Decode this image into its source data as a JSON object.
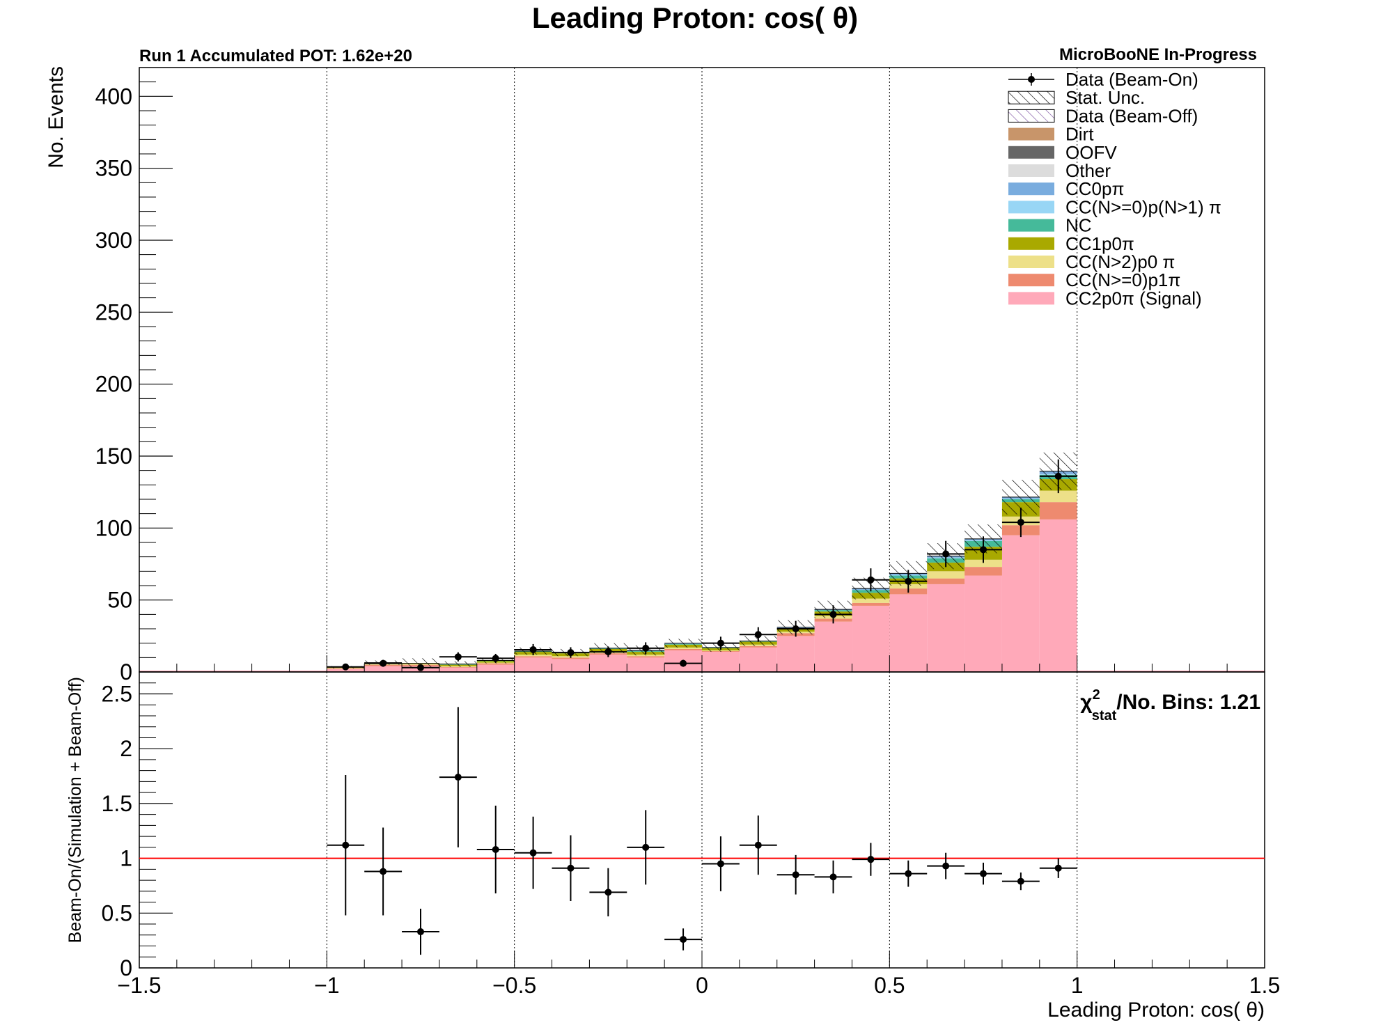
{
  "title": "Leading Proton: cos( θ)",
  "pot_label": "Run 1 Accumulated POT: 1.62e+20",
  "experiment_label": "MicroBooNE In-Progress",
  "chi2": {
    "symbol": "χ",
    "superscript": "2",
    "subscript": "stat",
    "text": "/No. Bins: 1.21"
  },
  "colors": {
    "Dirt": "#c8956a",
    "OOFV": "#666666",
    "Other": "#dcdcdc",
    "CC0p": "#79acde",
    "CCNpi": "#98d6f5",
    "NC": "#45ba9a",
    "CC1p0pi": "#a9a900",
    "CCN2p0pi": "#ede089",
    "CCNp1pi": "#ee8a6f",
    "Signal": "#ffa9b9",
    "ratio_line": "#ff0000"
  },
  "chart_data": [
    {
      "type": "stacked-histogram",
      "xlabel": "",
      "ylabel": "No. Events",
      "xlim": [
        -1.5,
        1.5
      ],
      "ylim": [
        0,
        420
      ],
      "y_ticks": [
        0,
        50,
        100,
        150,
        200,
        250,
        300,
        350,
        400
      ],
      "x_grid": [
        -1,
        -0.5,
        0,
        0.5,
        1
      ],
      "legend_position": "top-right",
      "bin_edges": [
        -1.0,
        -0.9,
        -0.8,
        -0.7,
        -0.6,
        -0.5,
        -0.4,
        -0.3,
        -0.2,
        -0.1,
        0.0,
        0.1,
        0.2,
        0.3,
        0.4,
        0.5,
        0.6,
        0.7,
        0.8,
        0.9,
        1.0
      ],
      "legend": [
        {
          "label": "Data (Beam-On)",
          "style": "marker"
        },
        {
          "label": "Stat. Unc.",
          "style": "hatch"
        },
        {
          "label": "Data (Beam-Off)",
          "style": "hatch-purple"
        },
        {
          "label": "Dirt",
          "style": "fill",
          "color_key": "Dirt"
        },
        {
          "label": "OOFV",
          "style": "fill",
          "color_key": "OOFV"
        },
        {
          "label": "Other",
          "style": "fill",
          "color_key": "Other"
        },
        {
          "label": "CC0pπ",
          "style": "fill",
          "color_key": "CC0p"
        },
        {
          "label": "CC(N>=0)p(N>1) π",
          "style": "fill",
          "color_key": "CCNpi"
        },
        {
          "label": "NC",
          "style": "fill",
          "color_key": "NC"
        },
        {
          "label": "CC1p0π",
          "style": "fill",
          "color_key": "CC1p0pi"
        },
        {
          "label": "CC(N>2)p0 π",
          "style": "fill",
          "color_key": "CCN2p0pi"
        },
        {
          "label": "CC(N>=0)p1π",
          "style": "fill",
          "color_key": "CCNp1pi"
        },
        {
          "label": "CC2p0π (Signal)",
          "style": "fill",
          "color_key": "Signal"
        }
      ],
      "series": [
        {
          "name": "CC2p0π (Signal)",
          "color_key": "Signal",
          "values": [
            2,
            4,
            4,
            3,
            5,
            10,
            9,
            12,
            10,
            15,
            14,
            17,
            25,
            35,
            46,
            54,
            61,
            67,
            95,
            106
          ]
        },
        {
          "name": "CC(N>=0)p1π",
          "color_key": "CCNp1pi",
          "values": [
            0.5,
            1,
            1,
            0.5,
            1,
            1,
            1,
            1,
            1,
            1,
            0.5,
            1,
            2,
            2,
            2,
            4,
            4,
            6,
            7,
            12
          ]
        },
        {
          "name": "CC(N>2)p0 π",
          "color_key": "CCN2p0pi",
          "values": [
            0.3,
            0.5,
            0.5,
            0.5,
            0.5,
            1,
            1,
            1,
            1,
            1,
            0.5,
            1,
            1,
            2,
            3,
            3,
            5,
            5,
            6,
            8
          ]
        },
        {
          "name": "CC1p0π",
          "color_key": "CC1p0pi",
          "values": [
            0.5,
            1,
            0.5,
            1,
            1,
            2,
            2,
            2,
            2,
            2,
            1.5,
            2,
            2,
            3,
            4,
            4,
            6,
            9,
            10,
            8
          ]
        },
        {
          "name": "NC",
          "color_key": "NC",
          "values": [
            0,
            0,
            0,
            0.5,
            0.5,
            0.5,
            0.5,
            0.5,
            0.5,
            0.5,
            0.5,
            0.5,
            0.5,
            1,
            2,
            2,
            3,
            4,
            2,
            3
          ]
        },
        {
          "name": "CC(N>=0)p(N>1) π",
          "color_key": "CCNpi",
          "values": [
            0,
            0,
            0,
            0,
            0,
            0,
            0,
            0,
            0,
            0,
            0,
            0,
            0,
            0,
            0,
            0.5,
            0.5,
            0.5,
            0.5,
            0.5
          ]
        },
        {
          "name": "CC0pπ",
          "color_key": "CC0p",
          "values": [
            0,
            0,
            0,
            0,
            0,
            0,
            0,
            0,
            0.5,
            0.5,
            0,
            0,
            0.5,
            0.5,
            1,
            1,
            1,
            1,
            1,
            2
          ]
        },
        {
          "name": "Other",
          "color_key": "Other",
          "values": [
            0,
            0,
            0,
            0,
            0,
            0,
            0,
            0,
            0,
            0,
            0,
            0,
            0,
            0,
            0,
            0,
            0,
            0,
            0,
            0
          ]
        },
        {
          "name": "OOFV",
          "color_key": "OOFV",
          "values": [
            0,
            0,
            0,
            0,
            0,
            0,
            0,
            0,
            0,
            0,
            0,
            0,
            0,
            0,
            0,
            0,
            0,
            0,
            0,
            0
          ]
        },
        {
          "name": "Dirt",
          "color_key": "Dirt",
          "values": [
            0,
            0,
            0,
            0,
            0,
            0,
            0,
            0,
            0,
            0,
            0,
            0,
            0,
            0,
            0,
            0,
            0,
            0,
            0,
            0
          ]
        },
        {
          "name": "Data (Beam-Off)",
          "color_key": "",
          "values": [
            0,
            0,
            0,
            0,
            0,
            0,
            0,
            0,
            0,
            0,
            0,
            0,
            0,
            0,
            0,
            0,
            0,
            0,
            0,
            0
          ]
        }
      ],
      "data_beam_on": {
        "x": [
          -0.95,
          -0.85,
          -0.75,
          -0.65,
          -0.55,
          -0.45,
          -0.35,
          -0.25,
          -0.15,
          -0.05,
          0.05,
          0.15,
          0.25,
          0.35,
          0.45,
          0.55,
          0.65,
          0.75,
          0.85,
          0.95
        ],
        "y": [
          3.5,
          6,
          3,
          10.5,
          9.5,
          15.5,
          13.5,
          14,
          16.5,
          6,
          20,
          26,
          30,
          40,
          64,
          63,
          82,
          85,
          104,
          136
        ],
        "yerr": [
          1.9,
          2.4,
          1.7,
          3.2,
          3.1,
          3.9,
          3.7,
          3.7,
          4.1,
          2.4,
          4.5,
          5.1,
          5.5,
          6.3,
          8.0,
          7.9,
          9.1,
          9.2,
          10.2,
          11.7
        ]
      },
      "stat_unc_band": [
        0.8,
        1.5,
        3.5,
        2.0,
        2.0,
        2.5,
        2.5,
        3.5,
        3.5,
        3.0,
        3.0,
        3.5,
        5.0,
        6.0,
        7.5,
        8.5,
        9.0,
        10.0,
        12.0,
        13.0
      ]
    },
    {
      "type": "ratio",
      "xlabel": "Leading Proton: cos( θ)",
      "ylabel": "Beam-On/(Simulation + Beam-Off)",
      "xlim": [
        -1.5,
        1.5
      ],
      "ylim": [
        0,
        2.7
      ],
      "y_ticks": [
        0,
        0.5,
        1,
        1.5,
        2,
        2.5
      ],
      "x_ticks": [
        -1.5,
        -1,
        -0.5,
        0,
        0.5,
        1,
        1.5
      ],
      "x_tick_labels": [
        "−1.5",
        "−1",
        "−0.5",
        "0",
        "0.5",
        "1",
        "1.5"
      ],
      "reference_line": 1,
      "x": [
        -0.95,
        -0.85,
        -0.75,
        -0.65,
        -0.55,
        -0.45,
        -0.35,
        -0.25,
        -0.15,
        -0.05,
        0.05,
        0.15,
        0.25,
        0.35,
        0.45,
        0.55,
        0.65,
        0.75,
        0.85,
        0.95
      ],
      "y": [
        1.12,
        0.88,
        0.33,
        1.74,
        1.08,
        1.05,
        0.91,
        0.69,
        1.1,
        0.26,
        0.95,
        1.12,
        0.85,
        0.83,
        0.99,
        0.86,
        0.93,
        0.86,
        0.79,
        0.91
      ],
      "yerr": [
        0.64,
        0.4,
        0.21,
        0.64,
        0.4,
        0.33,
        0.3,
        0.22,
        0.34,
        0.1,
        0.25,
        0.27,
        0.18,
        0.15,
        0.15,
        0.12,
        0.12,
        0.1,
        0.08,
        0.09
      ]
    }
  ]
}
